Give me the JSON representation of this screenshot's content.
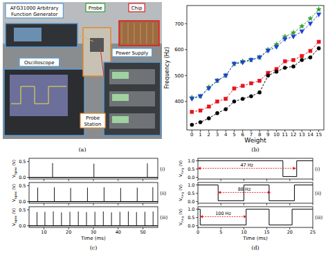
{
  "panel_a": {
    "caption": "(a)",
    "labels": [
      {
        "text": [
          "AFG31000 Arbitrary",
          "Function Generator"
        ]
      },
      {
        "text": [
          "Probe"
        ]
      },
      {
        "text": [
          "Chip"
        ]
      },
      {
        "text": [
          "Oscilloscope"
        ]
      },
      {
        "text": [
          "Probe",
          "Station"
        ]
      },
      {
        "text": [
          "Power Supply"
        ]
      }
    ]
  },
  "chart_data": [
    {
      "type": "line",
      "caption": "(b)",
      "xlabel": "Weight",
      "ylabel": "Frequency (Hz)",
      "x": [
        0,
        1,
        2,
        3,
        4,
        5,
        6,
        7,
        8,
        9,
        10,
        11,
        12,
        13,
        14,
        15
      ],
      "xlim": [
        -0.6,
        15.6
      ],
      "xticks": [
        0,
        1,
        2,
        3,
        4,
        5,
        6,
        7,
        8,
        9,
        10,
        11,
        12,
        13,
        14,
        15
      ],
      "ylim": [
        290,
        770
      ],
      "yticks": [
        400,
        500,
        600,
        700
      ],
      "series": [
        {
          "color": "#2ca02c",
          "marker": "star",
          "line_style": "dashed",
          "values": [
            415,
            420,
            455,
            480,
            500,
            545,
            555,
            560,
            570,
            600,
            620,
            650,
            665,
            690,
            720,
            755
          ]
        },
        {
          "color": "#1f3fd6",
          "marker": "triangle_down",
          "line_style": "dashed",
          "values": [
            410,
            420,
            450,
            480,
            500,
            545,
            550,
            560,
            570,
            595,
            610,
            640,
            650,
            670,
            700,
            735
          ]
        },
        {
          "color": "#e8141c",
          "marker": "square",
          "line_style": "dashed",
          "values": [
            360,
            365,
            380,
            400,
            410,
            450,
            460,
            470,
            480,
            510,
            525,
            555,
            560,
            575,
            595,
            630
          ]
        },
        {
          "color": "#000000",
          "marker": "circle",
          "line_style": "dashed",
          "values": [
            310,
            320,
            335,
            355,
            370,
            400,
            410,
            420,
            435,
            500,
            515,
            530,
            535,
            560,
            570,
            605
          ]
        }
      ]
    },
    {
      "type": "stem",
      "panel_label": "(i)",
      "ylabel": {
        "symbol": "V",
        "subscript": "Spike",
        "unit": " (V)"
      },
      "tick_labels": "y",
      "xlim": [
        4,
        56
      ],
      "xticks": [
        10,
        20,
        30,
        40,
        50
      ],
      "ylim": [
        -0.05,
        0.6
      ],
      "yticks": [
        {
          "value": 0,
          "label": "0.0"
        },
        {
          "value": 0.5,
          "label": "0.5"
        }
      ],
      "series": [
        {
          "color": "#000000",
          "x": [
            13.5,
            30.2,
            51.8
          ],
          "values": [
            0.45,
            0.43,
            0.44
          ]
        }
      ]
    },
    {
      "type": "stem",
      "panel_label": "(ii)",
      "ylabel": {
        "symbol": "V",
        "subscript": "Spike",
        "unit": " (V)"
      },
      "tick_labels": "y",
      "xlim": [
        4,
        56
      ],
      "xticks": [
        10,
        20,
        30,
        40,
        50
      ],
      "ylim": [
        -0.05,
        0.6
      ],
      "yticks": [
        {
          "value": 0,
          "label": "0.0"
        },
        {
          "value": 0.5,
          "label": "0.5"
        }
      ],
      "series": [
        {
          "color": "#000000",
          "x": [
            7.5,
            14.2,
            20.8,
            27.6,
            34.3,
            41.0,
            47.7,
            54.0
          ],
          "values": [
            0.44,
            0.45,
            0.43,
            0.44,
            0.45,
            0.43,
            0.44,
            0.45
          ]
        }
      ]
    },
    {
      "type": "stem",
      "panel_label": "(iii)",
      "caption": "(c)",
      "xlabel": "Time (ms)",
      "ylabel": {
        "symbol": "V",
        "subscript": "Spike",
        "unit": " (V)"
      },
      "xlim": [
        4,
        56
      ],
      "xticks": [
        10,
        20,
        30,
        40,
        50
      ],
      "ylim": [
        -0.05,
        0.6
      ],
      "yticks": [
        {
          "value": 0,
          "label": "0.0"
        },
        {
          "value": 0.5,
          "label": "0.5"
        }
      ],
      "series": [
        {
          "color": "#000000",
          "x": [
            7.2,
            10.4,
            13.8,
            17.1,
            20.5,
            23.9,
            27.2,
            30.6,
            34.0,
            37.3,
            40.7,
            44.1,
            47.4,
            50.8,
            54.1
          ],
          "values": [
            0.43,
            0.44,
            0.45,
            0.42,
            0.44,
            0.45,
            0.43,
            0.44,
            0.45,
            0.42,
            0.44,
            0.45,
            0.43,
            0.44,
            0.45
          ]
        }
      ]
    },
    {
      "type": "line",
      "panel_label": "(i)",
      "ylabel": {
        "symbol": "V",
        "subscript": "Ring",
        "unit": " (V)"
      },
      "tick_labels": "y",
      "xlim": [
        0,
        25
      ],
      "xticks": [
        0,
        5,
        10,
        15,
        20,
        25
      ],
      "ylim": [
        -0.1,
        1.15
      ],
      "yticks": [
        {
          "value": 0,
          "label": "0.0"
        },
        {
          "value": 0.5,
          "label": "0.5"
        },
        {
          "value": 1,
          "label": "1.0"
        }
      ],
      "series": [
        {
          "color": "#000000",
          "x": [
            0,
            18.5,
            18.5,
            21.5,
            21.5,
            25
          ],
          "values": [
            1.0,
            1.0,
            0.05,
            0.05,
            1.0,
            1.0
          ]
        }
      ],
      "annotations": [
        {
          "text": "47 Hz",
          "x": [
            0,
            21.3
          ],
          "y": 0.55
        }
      ]
    },
    {
      "type": "line",
      "panel_label": "(ii)",
      "ylabel": {
        "symbol": "V",
        "subscript": "Ring",
        "unit": " (V)"
      },
      "tick_labels": "y",
      "xlim": [
        0,
        25
      ],
      "xticks": [
        0,
        5,
        10,
        15,
        20,
        25
      ],
      "ylim": [
        -0.1,
        1.15
      ],
      "yticks": [
        {
          "value": 0,
          "label": "0.0"
        },
        {
          "value": 0.5,
          "label": "0.5"
        },
        {
          "value": 1,
          "label": "1.0"
        }
      ],
      "series": [
        {
          "color": "#000000",
          "x": [
            0,
            4.4,
            4.4,
            10.0,
            10.0,
            15.5,
            15.5,
            21.0,
            21.0,
            25
          ],
          "values": [
            1.0,
            1.0,
            0.05,
            0.05,
            1.0,
            1.0,
            0.05,
            0.05,
            1.0,
            1.0
          ]
        }
      ],
      "annotations": [
        {
          "text": "88 Hz",
          "x": [
            4.4,
            15.8
          ],
          "y": 0.55
        }
      ]
    },
    {
      "type": "line",
      "panel_label": "(iii)",
      "caption": "(d)",
      "xlabel": "Time (ms)",
      "ylabel": {
        "symbol": "V",
        "subscript": "Ring",
        "unit": " (V)"
      },
      "xlim": [
        0,
        25
      ],
      "xticks": [
        0,
        5,
        10,
        15,
        20,
        25
      ],
      "ylim": [
        -0.1,
        1.15
      ],
      "yticks": [
        {
          "value": 0,
          "label": "0.0"
        },
        {
          "value": 0.5,
          "label": "0.5"
        },
        {
          "value": 1,
          "label": "1.0"
        }
      ],
      "series": [
        {
          "color": "#000000",
          "x": [
            0,
            0.5,
            0.5,
            10.5,
            10.5,
            15.5,
            15.5,
            20.5,
            20.5,
            25
          ],
          "values": [
            1.0,
            1.0,
            0.05,
            0.05,
            1.0,
            1.0,
            0.05,
            0.05,
            1.0,
            1.0
          ]
        }
      ],
      "annotations": [
        {
          "text": "100 Hz",
          "x": [
            0.5,
            10.5
          ],
          "y": 0.55
        }
      ]
    }
  ]
}
